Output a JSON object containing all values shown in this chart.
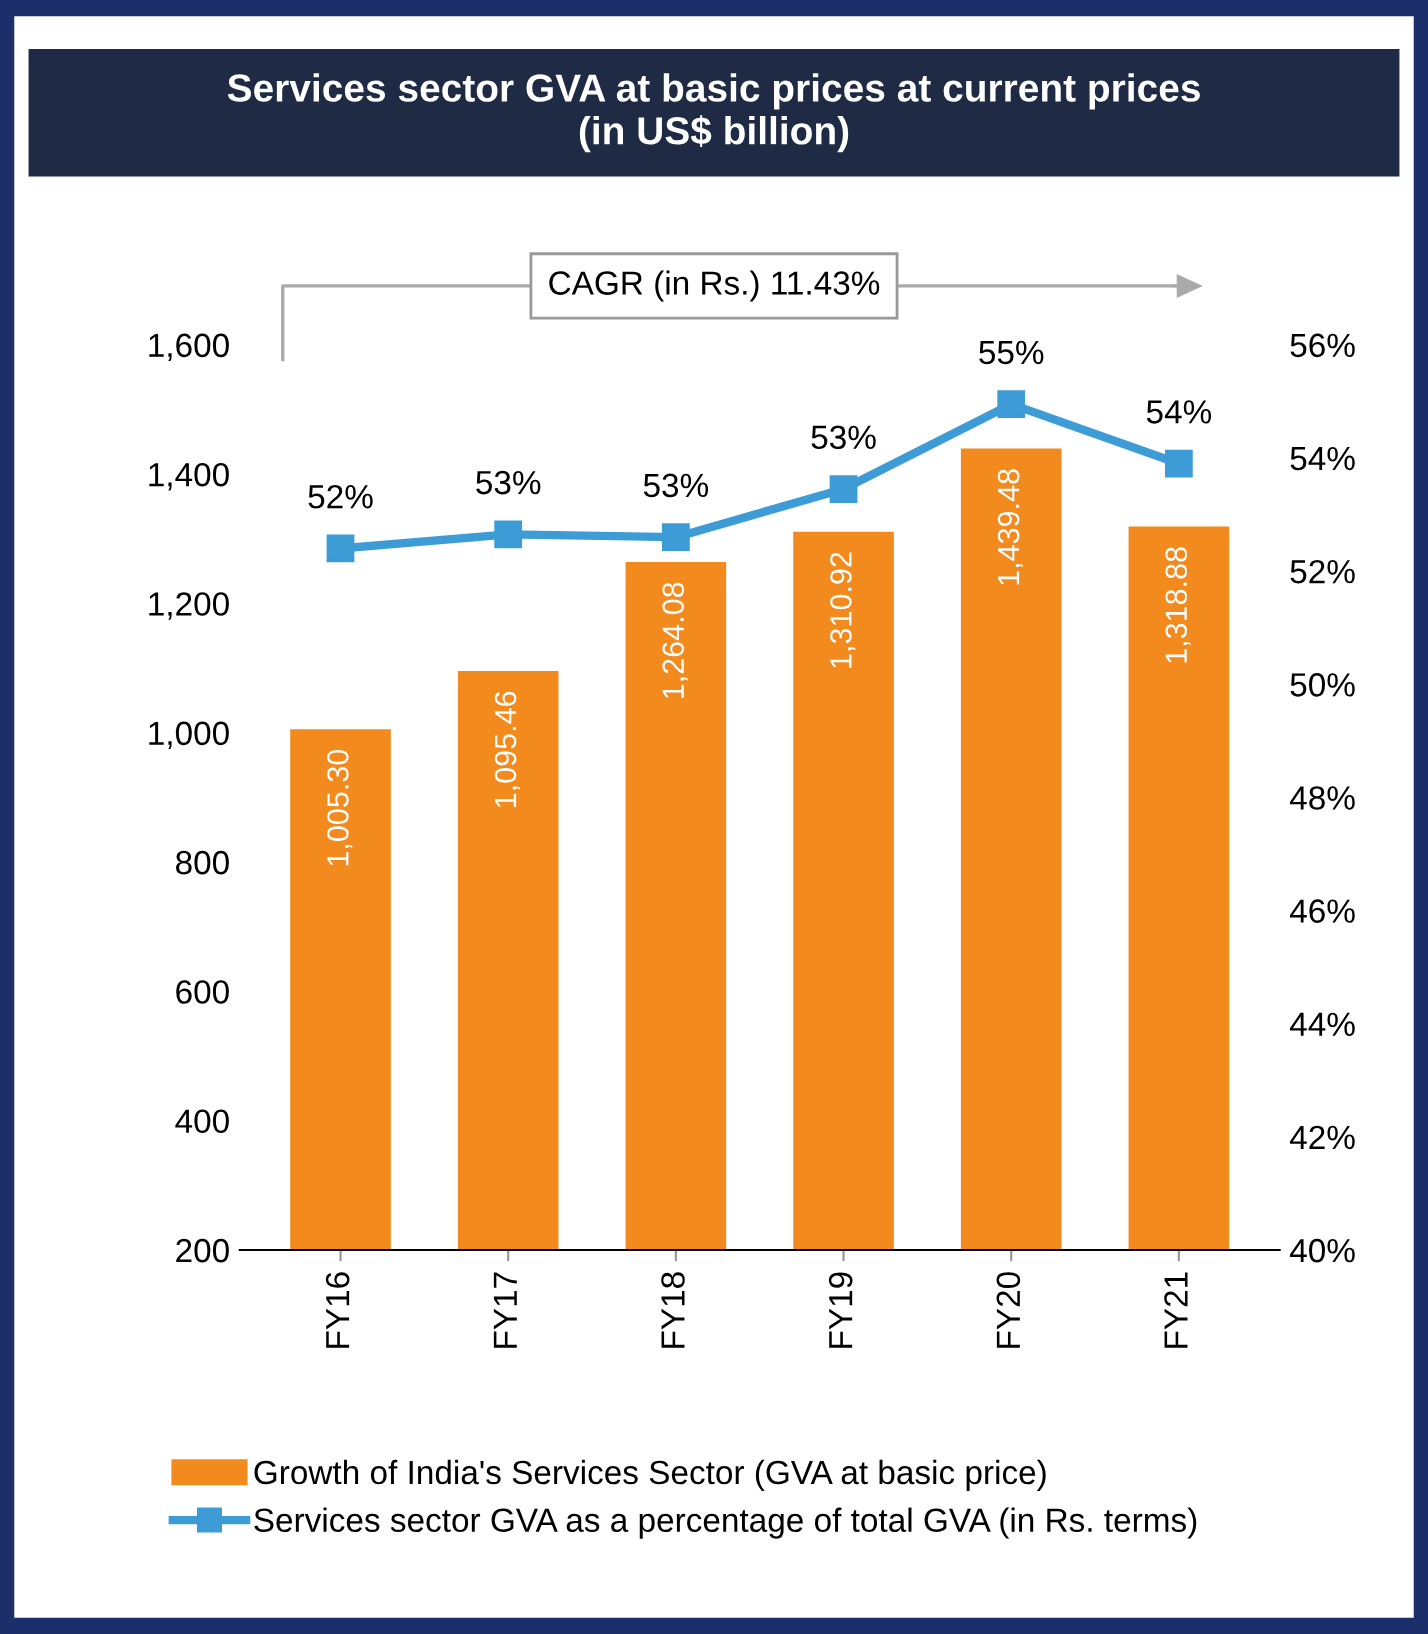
{
  "chart_data": {
    "type": "bar",
    "title": "Services sector GVA at basic prices at current prices\n(in US$ billion)",
    "annotations": [
      "CAGR (in Rs.) 11.43%"
    ],
    "categories": [
      "FY16",
      "FY17",
      "FY18",
      "FY19",
      "FY20",
      "FY21"
    ],
    "series": [
      {
        "name": "Growth of India's Services Sector (GVA at basic price)",
        "color": "#f28a1e",
        "values": [
          1005.3,
          1095.46,
          1264.08,
          1310.92,
          1439.48,
          1318.88
        ],
        "value_labels": [
          "1,005.30",
          "1,095.46",
          "1,264.08",
          "1,310.92",
          "1,439.48",
          "1,318.88"
        ]
      },
      {
        "name": "Services sector GVA as a percentage of total GVA (in Rs. terms)",
        "type": "line",
        "axis": "y2",
        "color": "#3d9bd6",
        "marker": "square",
        "values": [
          52.4,
          52.65,
          52.6,
          53.45,
          54.95,
          53.9
        ],
        "value_labels": [
          "52%",
          "53%",
          "53%",
          "53%",
          "55%",
          "54%"
        ]
      }
    ],
    "ylim": [
      200,
      1600
    ],
    "yticks": [
      {
        "value": 200,
        "label": "200"
      },
      {
        "value": 400,
        "label": "400"
      },
      {
        "value": 600,
        "label": "600"
      },
      {
        "value": 800,
        "label": "800"
      },
      {
        "value": 1000,
        "label": "1,000"
      },
      {
        "value": 1200,
        "label": "1,200"
      },
      {
        "value": 1400,
        "label": "1,400"
      },
      {
        "value": 1600,
        "label": "1,600"
      }
    ],
    "y2lim": [
      40,
      56
    ],
    "y2ticks": [
      {
        "value": 40,
        "label": "40%"
      },
      {
        "value": 42,
        "label": "42%"
      },
      {
        "value": 44,
        "label": "44%"
      },
      {
        "value": 46,
        "label": "46%"
      },
      {
        "value": 48,
        "label": "48%"
      },
      {
        "value": 50,
        "label": "50%"
      },
      {
        "value": 52,
        "label": "52%"
      },
      {
        "value": 54,
        "label": "54%"
      },
      {
        "value": 56,
        "label": "56%"
      }
    ],
    "grid": false,
    "legend": "bottom"
  }
}
